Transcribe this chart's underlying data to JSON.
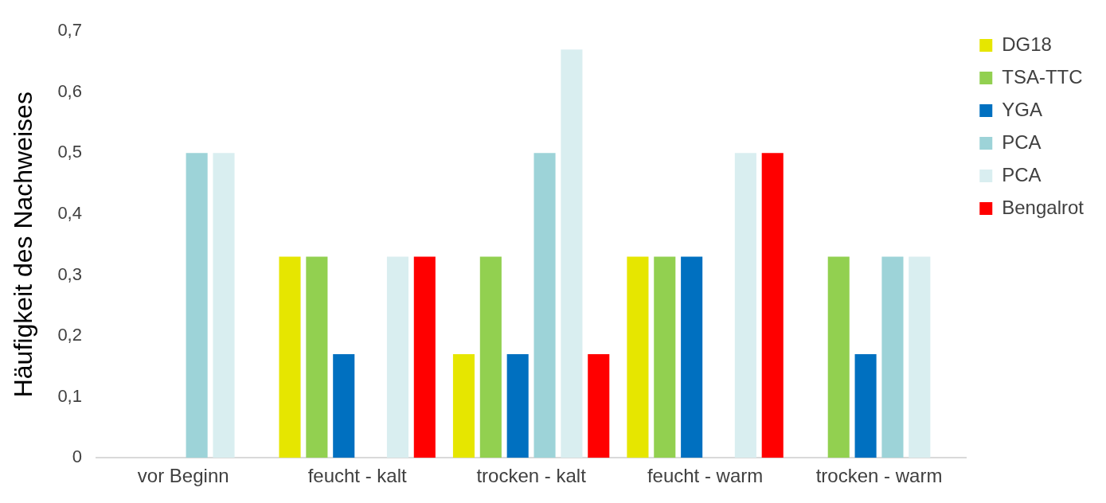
{
  "chart_data": {
    "type": "bar",
    "ylabel": "Häufigkeit des Nachweises",
    "categories": [
      "vor Beginn",
      "feucht - kalt",
      "trocken - kalt",
      "feucht - warm",
      "trocken - warm"
    ],
    "series": [
      {
        "name": "DG18",
        "color": "#e6e600",
        "values": [
          0,
          0.33,
          0.17,
          0.33,
          0
        ]
      },
      {
        "name": "TSA-TTC",
        "color": "#92d050",
        "values": [
          0,
          0.33,
          0.33,
          0.33,
          0.33
        ]
      },
      {
        "name": "YGA",
        "color": "#0070c0",
        "values": [
          0,
          0.17,
          0.17,
          0.33,
          0.17
        ]
      },
      {
        "name": "PCA",
        "color": "#9dd3d8",
        "values": [
          0.5,
          0,
          0.5,
          0,
          0.33
        ]
      },
      {
        "name": "PCA",
        "color": "#d9eef0",
        "values": [
          0.5,
          0.33,
          0.67,
          0.5,
          0.33
        ]
      },
      {
        "name": "Bengalrot",
        "color": "#ff0000",
        "values": [
          0,
          0.33,
          0.17,
          0.5,
          0
        ]
      }
    ],
    "ylim": [
      0,
      0.7
    ],
    "yticks": [
      {
        "value": 0,
        "label": "0"
      },
      {
        "value": 0.1,
        "label": "0,1"
      },
      {
        "value": 0.2,
        "label": "0,2"
      },
      {
        "value": 0.3,
        "label": "0,3"
      },
      {
        "value": 0.4,
        "label": "0,4"
      },
      {
        "value": 0.5,
        "label": "0,5"
      },
      {
        "value": 0.6,
        "label": "0,6"
      },
      {
        "value": 0.7,
        "label": "0,7"
      }
    ],
    "grid": false,
    "legend": "top right"
  }
}
